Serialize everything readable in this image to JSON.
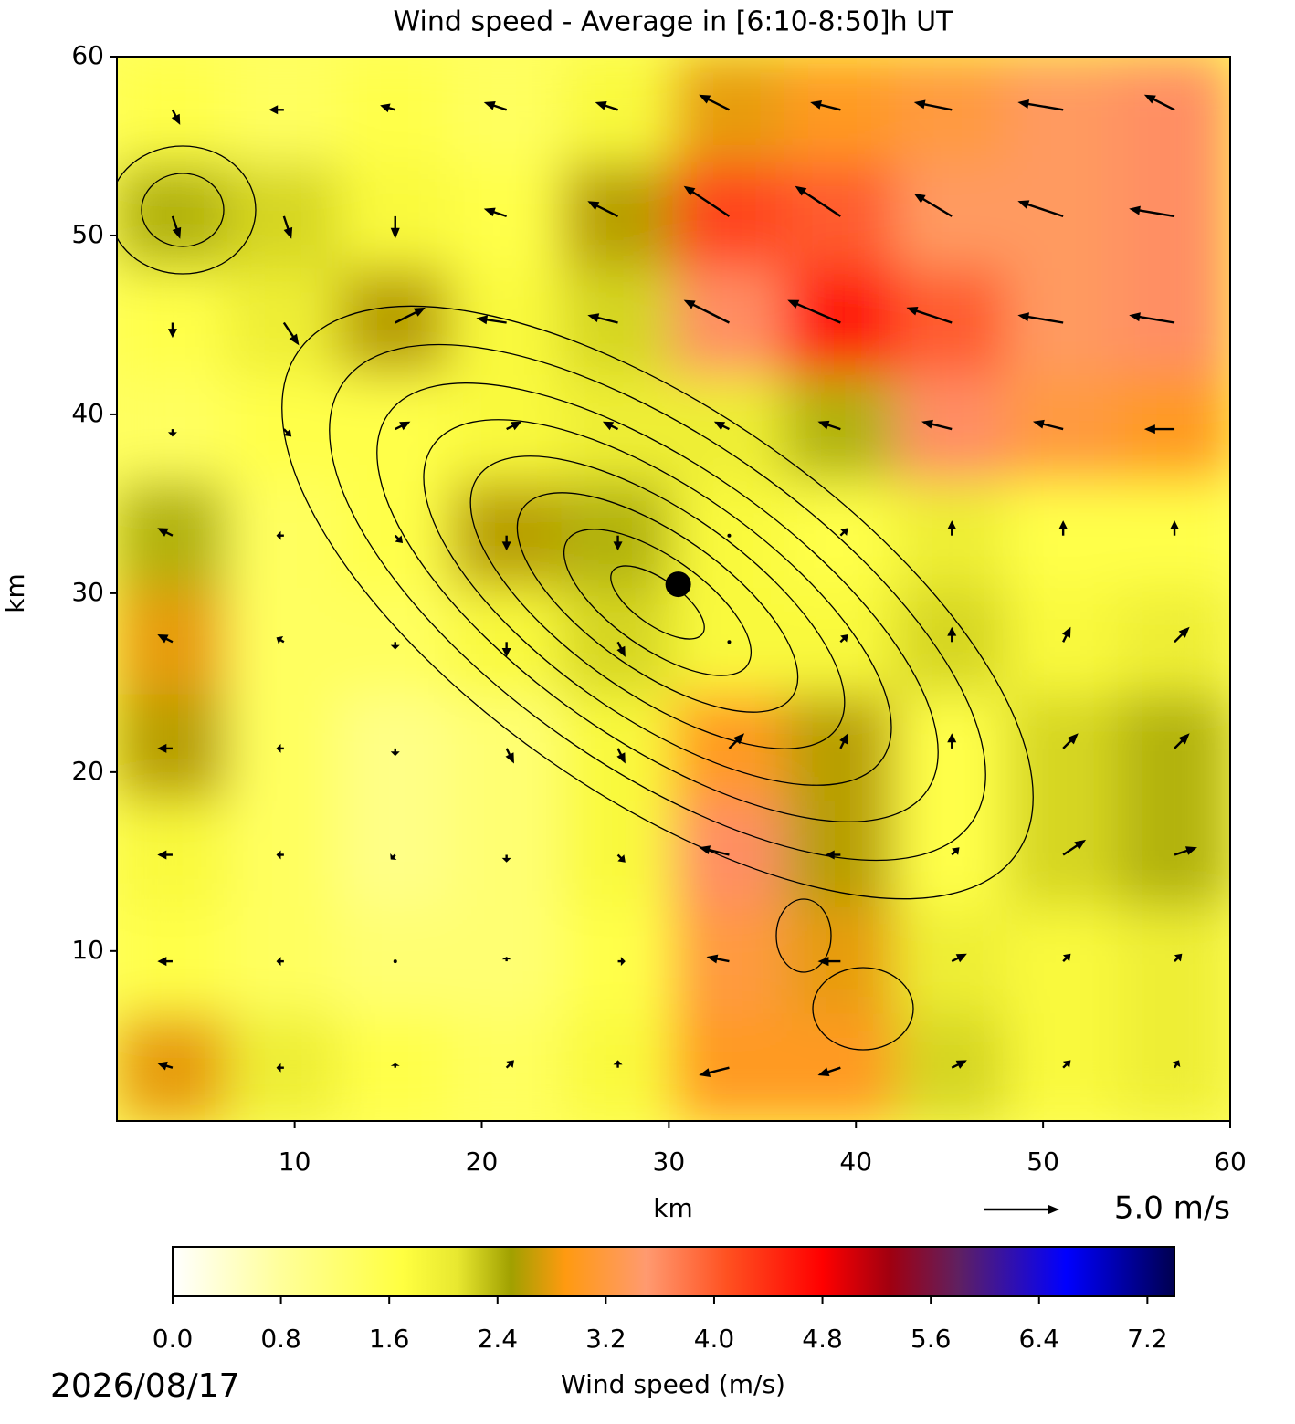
{
  "chart_data": {
    "type": "heatmap",
    "title": "Wind speed - Average in [6:10-8:50]h UT",
    "xlabel": "km",
    "ylabel": "km",
    "xlim": [
      0.5,
      60
    ],
    "ylim": [
      0.5,
      60
    ],
    "xticks": [
      10,
      20,
      30,
      40,
      50,
      60
    ],
    "yticks": [
      10,
      20,
      30,
      40,
      50,
      60
    ],
    "speed": [
      [
        1.6,
        1.4,
        1.6,
        1.4,
        1.8,
        2.8,
        3.0,
        3.2,
        3.4,
        3.6
      ],
      [
        2.4,
        2.2,
        1.8,
        1.6,
        2.6,
        4.2,
        4.0,
        3.4,
        3.4,
        3.6
      ],
      [
        1.6,
        2.0,
        2.6,
        1.8,
        2.2,
        3.6,
        4.6,
        4.0,
        3.4,
        3.6
      ],
      [
        1.4,
        1.6,
        1.6,
        1.8,
        2.0,
        2.0,
        2.4,
        3.6,
        3.2,
        3.0
      ],
      [
        2.4,
        1.4,
        1.6,
        2.6,
        2.4,
        1.8,
        1.6,
        2.0,
        1.6,
        1.6
      ],
      [
        2.8,
        1.4,
        1.4,
        1.8,
        2.2,
        1.8,
        1.8,
        2.2,
        1.8,
        2.0
      ],
      [
        2.6,
        1.4,
        1.0,
        1.2,
        1.8,
        3.0,
        2.6,
        1.6,
        2.2,
        2.4
      ],
      [
        1.8,
        1.4,
        1.0,
        1.2,
        1.8,
        3.6,
        2.6,
        1.6,
        2.2,
        2.4
      ],
      [
        1.6,
        1.4,
        1.2,
        1.2,
        1.6,
        3.2,
        2.8,
        2.0,
        1.8,
        2.0
      ],
      [
        2.8,
        2.0,
        1.6,
        1.4,
        1.8,
        3.0,
        3.0,
        2.2,
        1.8,
        2.0
      ]
    ],
    "u": [
      [
        0.5,
        -1,
        -1,
        -1.5,
        -1.5,
        -2,
        -2,
        -2.5,
        -3,
        -2
      ],
      [
        0.5,
        0.5,
        0,
        -1.5,
        -2,
        -3,
        -3,
        -2.5,
        -3,
        -3
      ],
      [
        0,
        1,
        2,
        -2,
        -2,
        -3,
        -3.5,
        -3,
        -3,
        -3
      ],
      [
        0,
        0.5,
        1,
        1,
        -1,
        -1,
        -1.5,
        -2,
        -2,
        -2
      ],
      [
        -1,
        -0.5,
        0.5,
        0,
        0,
        0,
        0.5,
        0,
        0,
        0
      ],
      [
        -1,
        -0.5,
        0,
        0,
        0.5,
        0,
        0.5,
        0,
        0.5,
        1
      ],
      [
        -1,
        -0.5,
        0,
        0.5,
        0.5,
        1,
        0.5,
        0,
        1,
        1
      ],
      [
        -1,
        -0.5,
        -0.3,
        0,
        0.5,
        -2,
        -1,
        0.5,
        1.5,
        1.5
      ],
      [
        -1,
        -0.5,
        0,
        0,
        0.5,
        -1.5,
        -1.5,
        1,
        0.5,
        0.5
      ],
      [
        -1,
        -0.5,
        0,
        0.5,
        0,
        -2,
        -1.5,
        1,
        0.5,
        0.3
      ]
    ],
    "v": [
      [
        -1,
        0,
        0.3,
        0.5,
        0.5,
        1,
        0.5,
        0.5,
        0.5,
        1
      ],
      [
        -1.5,
        -1.5,
        -1.5,
        0.5,
        1,
        2,
        2,
        1.5,
        1,
        0.5
      ],
      [
        -1,
        -1.5,
        1,
        0.3,
        0.5,
        1.5,
        1.5,
        1,
        0.5,
        0.5
      ],
      [
        -0.5,
        -0.5,
        0.5,
        0.5,
        0.5,
        0.5,
        0.5,
        0.5,
        0.5,
        0
      ],
      [
        0.5,
        0,
        -0.5,
        -1,
        -1,
        0,
        0.5,
        1,
        1,
        1
      ],
      [
        0.5,
        0.3,
        -0.5,
        -1,
        -1,
        0,
        0.5,
        1,
        1,
        1
      ],
      [
        0,
        0,
        -0.5,
        -1,
        -1,
        1,
        1,
        1,
        1,
        1
      ],
      [
        0,
        0,
        -0.3,
        -0.5,
        -0.5,
        0.5,
        0,
        0.5,
        1,
        0.5
      ],
      [
        0,
        0,
        0,
        0.3,
        0,
        0.3,
        0,
        0.5,
        0.5,
        0.5
      ],
      [
        0.3,
        0,
        0.3,
        0.5,
        0.5,
        -0.5,
        -0.5,
        0.5,
        0.5,
        0.5
      ]
    ],
    "marker": {
      "x": 30.5,
      "y": 30.5
    },
    "quiver_key": {
      "value": 5,
      "label": "5.0 m/s"
    },
    "colorbar": {
      "label": "Wind speed (m/s)",
      "clim": [
        0,
        7.4
      ],
      "ticks": [
        {
          "value": 0,
          "label": "0.0"
        },
        {
          "value": 0.8,
          "label": "0.8"
        },
        {
          "value": 1.6,
          "label": "1.6"
        },
        {
          "value": 2.4,
          "label": "2.4"
        },
        {
          "value": 3.2,
          "label": "3.2"
        },
        {
          "value": 4,
          "label": "4.0"
        },
        {
          "value": 4.8,
          "label": "4.8"
        },
        {
          "value": 5.6,
          "label": "5.6"
        },
        {
          "value": 6.4,
          "label": "6.4"
        },
        {
          "value": 7.2,
          "label": "7.2"
        }
      ],
      "colormap": [
        {
          "value": 0,
          "color": "#ffffff"
        },
        {
          "value": 0.8,
          "color": "#ffff9a"
        },
        {
          "value": 1.7,
          "color": "#ffff40"
        },
        {
          "value": 2.1,
          "color": "#e8e830"
        },
        {
          "value": 2.5,
          "color": "#a0a000"
        },
        {
          "value": 2.9,
          "color": "#ff9a10"
        },
        {
          "value": 3.5,
          "color": "#ff9a70"
        },
        {
          "value": 4.1,
          "color": "#ff5020"
        },
        {
          "value": 4.8,
          "color": "#ff0000"
        },
        {
          "value": 5.3,
          "color": "#a00010"
        },
        {
          "value": 5.8,
          "color": "#602060"
        },
        {
          "value": 6.6,
          "color": "#0000ff"
        },
        {
          "value": 7.4,
          "color": "#000050"
        }
      ]
    },
    "date": "2026/08/17"
  }
}
